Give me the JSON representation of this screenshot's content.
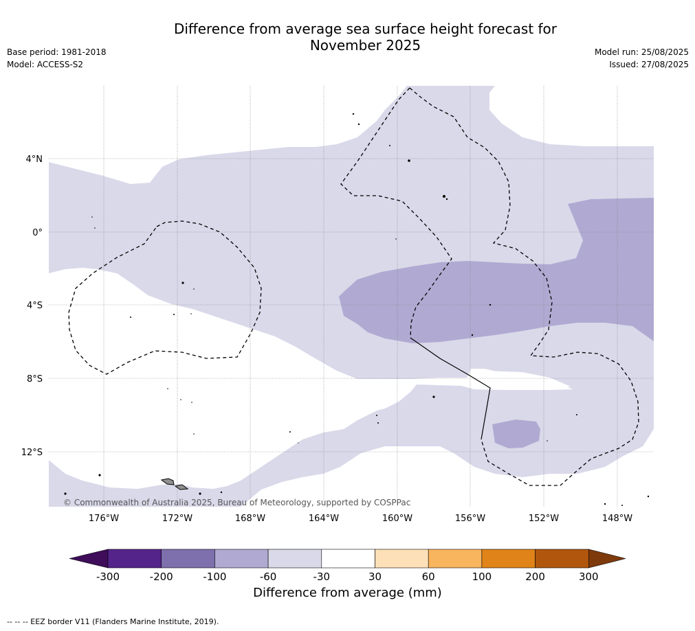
{
  "title_line1": "Difference from average sea surface height forecast for",
  "title_line2": "November 2025",
  "base_period": "Base period: 1981-2018",
  "model": "Model: ACCESS-S2",
  "model_run": "Model run: 25/08/2025",
  "issued": "Issued: 27/08/2025",
  "copyright": "© Commonwealth of Australia 2025, Bureau of Meteorology, supported by COSPPac",
  "footer": "--  --  -- EEZ border V11 (Flanders Marine Institute, 2019).",
  "lat_labels": [
    "4°N",
    "0°",
    "4°S",
    "8°S",
    "12°S"
  ],
  "lon_labels": [
    "176°W",
    "172°W",
    "168°W",
    "164°W",
    "160°W",
    "156°W",
    "152°W",
    "148°W"
  ],
  "colorbar": {
    "title": "Difference from average (mm)",
    "ticks": [
      "-300",
      "-200",
      "-100",
      "-60",
      "-30",
      "30",
      "60",
      "100",
      "200",
      "300"
    ],
    "colors": [
      "#3f0d5a",
      "#54248a",
      "#7e6fad",
      "#b0aad2",
      "#d9d9ea",
      "#ffffff",
      "#fde0b7",
      "#f8b55e",
      "#e08318",
      "#b0560d",
      "#7e3a0a"
    ]
  },
  "fill_colors": {
    "light": "#d9d9ea",
    "medium": "#b0aad2",
    "island": "#909090"
  }
}
